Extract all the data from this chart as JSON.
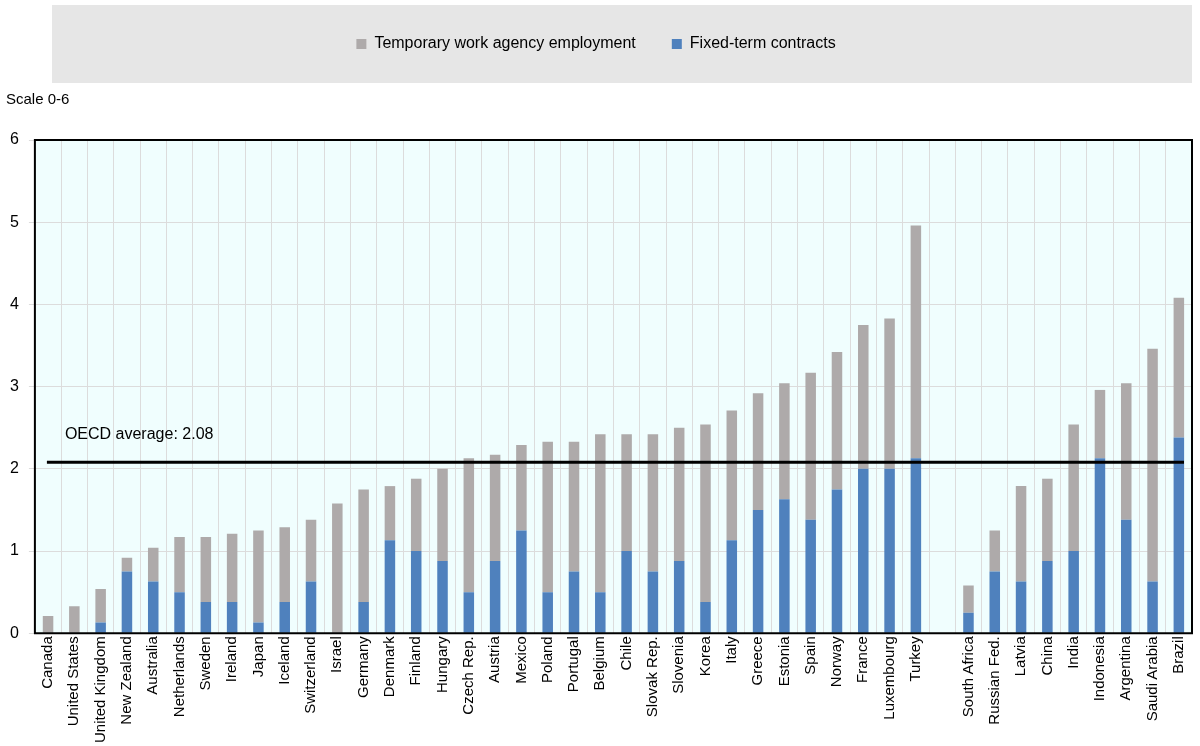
{
  "chart_data": {
    "type": "bar",
    "stacked": true,
    "ylabel": "Scale 0-6",
    "categories": [
      "Canada",
      "United States",
      "United Kingdom",
      "New Zealand",
      "Australia",
      "Netherlands",
      "Sweden",
      "Ireland",
      "Japan",
      "Iceland",
      "Switzerland",
      "Israel",
      "Germany",
      "Denmark",
      "Finland",
      "Hungary",
      "Czech Rep.",
      "Austria",
      "Mexico",
      "Poland",
      "Portugal",
      "Belgium",
      "Chile",
      "Slovak Rep.",
      "Slovenia",
      "Korea",
      "Italy",
      "Greece",
      "Estonia",
      "Spain",
      "Norway",
      "France",
      "Luxembourg",
      "Turkey",
      null,
      "South Africa",
      "Russian Fed.",
      "Latvia",
      "China",
      "India",
      "Indonesia",
      "Argentina",
      "Saudi Arabia",
      "Brazil"
    ],
    "series": [
      {
        "name": "Fixed-term contracts",
        "color": "#4f81bd",
        "values": [
          0,
          0,
          0.13,
          0.75,
          0.63,
          0.5,
          0.38,
          0.38,
          0.13,
          0.38,
          0.63,
          0,
          0.38,
          1.13,
          1.0,
          0.88,
          0.5,
          0.88,
          1.25,
          0.5,
          0.75,
          0.5,
          1.0,
          0.75,
          0.88,
          0.38,
          1.13,
          1.5,
          1.63,
          1.38,
          1.75,
          2.0,
          2.0,
          2.13,
          null,
          0.25,
          0.75,
          0.63,
          0.88,
          1.0,
          2.13,
          1.38,
          0.63,
          2.38
        ]
      },
      {
        "name": "Temporary work agency employment",
        "color": "#aeaaaa",
        "values": [
          0.21,
          0.33,
          0.41,
          0.17,
          0.41,
          0.67,
          0.79,
          0.83,
          1.12,
          0.91,
          0.75,
          1.58,
          1.37,
          0.66,
          0.88,
          1.12,
          1.63,
          1.29,
          1.04,
          1.83,
          1.58,
          1.92,
          1.42,
          1.67,
          1.62,
          2.16,
          1.58,
          1.42,
          1.41,
          1.79,
          1.67,
          1.75,
          1.83,
          2.83,
          null,
          0.33,
          0.5,
          1.16,
          1.0,
          1.54,
          0.83,
          1.66,
          2.83,
          1.7
        ]
      }
    ],
    "ylim": [
      0,
      6
    ],
    "yticks": [
      0,
      1,
      2,
      3,
      4,
      5,
      6
    ],
    "grid": true,
    "legend": "top",
    "ref_lines": [
      {
        "axis": "y",
        "value": 2.08,
        "label": "OECD average: 2.08",
        "color": "#000000"
      }
    ]
  }
}
